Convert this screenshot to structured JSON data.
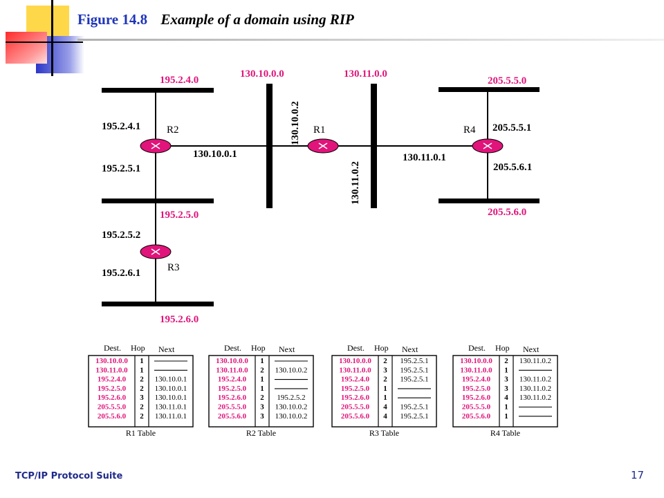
{
  "title": {
    "number": "Figure 14.8",
    "text": "Example of a domain using RIP"
  },
  "footer": {
    "suite": "TCP/IP Protocol Suite",
    "page": "17"
  },
  "colors": {
    "network_label": "#e0147a",
    "router": "#e0147a",
    "title_number": "#1f35b8",
    "footer": "#1f2a8a"
  },
  "networks": {
    "n195_2_4_0": "195.2.4.0",
    "n195_2_5_0": "195.2.5.0",
    "n195_2_6_0": "195.2.6.0",
    "n130_10_0_0": "130.10.0.0",
    "n130_11_0_0": "130.11.0.0",
    "n205_5_5_0": "205.5.5.0",
    "n205_5_6_0": "205.5.6.0"
  },
  "routers": {
    "R1": {
      "name": "R1",
      "if1": "130.10.0.2",
      "if2": "130.11.0.2"
    },
    "R2": {
      "name": "R2",
      "if1": "195.2.4.1",
      "if2": "195.2.5.1",
      "if3": "130.10.0.1"
    },
    "R3": {
      "name": "R3",
      "if1": "195.2.5.2",
      "if2": "195.2.6.1"
    },
    "R4": {
      "name": "R4",
      "if1": "130.11.0.1",
      "if2": "205.5.5.1",
      "if3": "205.5.6.1"
    }
  },
  "table_headers": {
    "dest": "Dest.",
    "hop": "Hop",
    "next": "Next"
  },
  "tables": [
    {
      "caption": "R1 Table",
      "rows": [
        {
          "dest": "130.10.0.0",
          "hop": "1",
          "next": "———"
        },
        {
          "dest": "130.11.0.0",
          "hop": "1",
          "next": "———"
        },
        {
          "dest": "195.2.4.0",
          "hop": "2",
          "next": "130.10.0.1"
        },
        {
          "dest": "195.2.5.0",
          "hop": "2",
          "next": "130.10.0.1"
        },
        {
          "dest": "195.2.6.0",
          "hop": "3",
          "next": "130.10.0.1"
        },
        {
          "dest": "205.5.5.0",
          "hop": "2",
          "next": "130.11.0.1"
        },
        {
          "dest": "205.5.6.0",
          "hop": "2",
          "next": "130.11.0.1"
        }
      ]
    },
    {
      "caption": "R2 Table",
      "rows": [
        {
          "dest": "130.10.0.0",
          "hop": "1",
          "next": "———"
        },
        {
          "dest": "130.11.0.0",
          "hop": "2",
          "next": "130.10.0.2"
        },
        {
          "dest": "195.2.4.0",
          "hop": "1",
          "next": "———"
        },
        {
          "dest": "195.2.5.0",
          "hop": "1",
          "next": "———"
        },
        {
          "dest": "195.2.6.0",
          "hop": "2",
          "next": "195.2.5.2"
        },
        {
          "dest": "205.5.5.0",
          "hop": "3",
          "next": "130.10.0.2"
        },
        {
          "dest": "205.5.6.0",
          "hop": "3",
          "next": "130.10.0.2"
        }
      ]
    },
    {
      "caption": "R3 Table",
      "rows": [
        {
          "dest": "130.10.0.0",
          "hop": "2",
          "next": "195.2.5.1"
        },
        {
          "dest": "130.11.0.0",
          "hop": "3",
          "next": "195.2.5.1"
        },
        {
          "dest": "195.2.4.0",
          "hop": "2",
          "next": "195.2.5.1"
        },
        {
          "dest": "195.2.5.0",
          "hop": "1",
          "next": "———"
        },
        {
          "dest": "195.2.6.0",
          "hop": "1",
          "next": "———"
        },
        {
          "dest": "205.5.5.0",
          "hop": "4",
          "next": "195.2.5.1"
        },
        {
          "dest": "205.5.6.0",
          "hop": "4",
          "next": "195.2.5.1"
        }
      ]
    },
    {
      "caption": "R4 Table",
      "rows": [
        {
          "dest": "130.10.0.0",
          "hop": "2",
          "next": "130.11.0.2"
        },
        {
          "dest": "130.11.0.0",
          "hop": "1",
          "next": "———"
        },
        {
          "dest": "195.2.4.0",
          "hop": "3",
          "next": "130.11.0.2"
        },
        {
          "dest": "195.2.5.0",
          "hop": "3",
          "next": "130.11.0.2"
        },
        {
          "dest": "195.2.6.0",
          "hop": "4",
          "next": "130.11.0.2"
        },
        {
          "dest": "205.5.5.0",
          "hop": "1",
          "next": "———"
        },
        {
          "dest": "205.5.6.0",
          "hop": "1",
          "next": "———"
        }
      ]
    }
  ]
}
